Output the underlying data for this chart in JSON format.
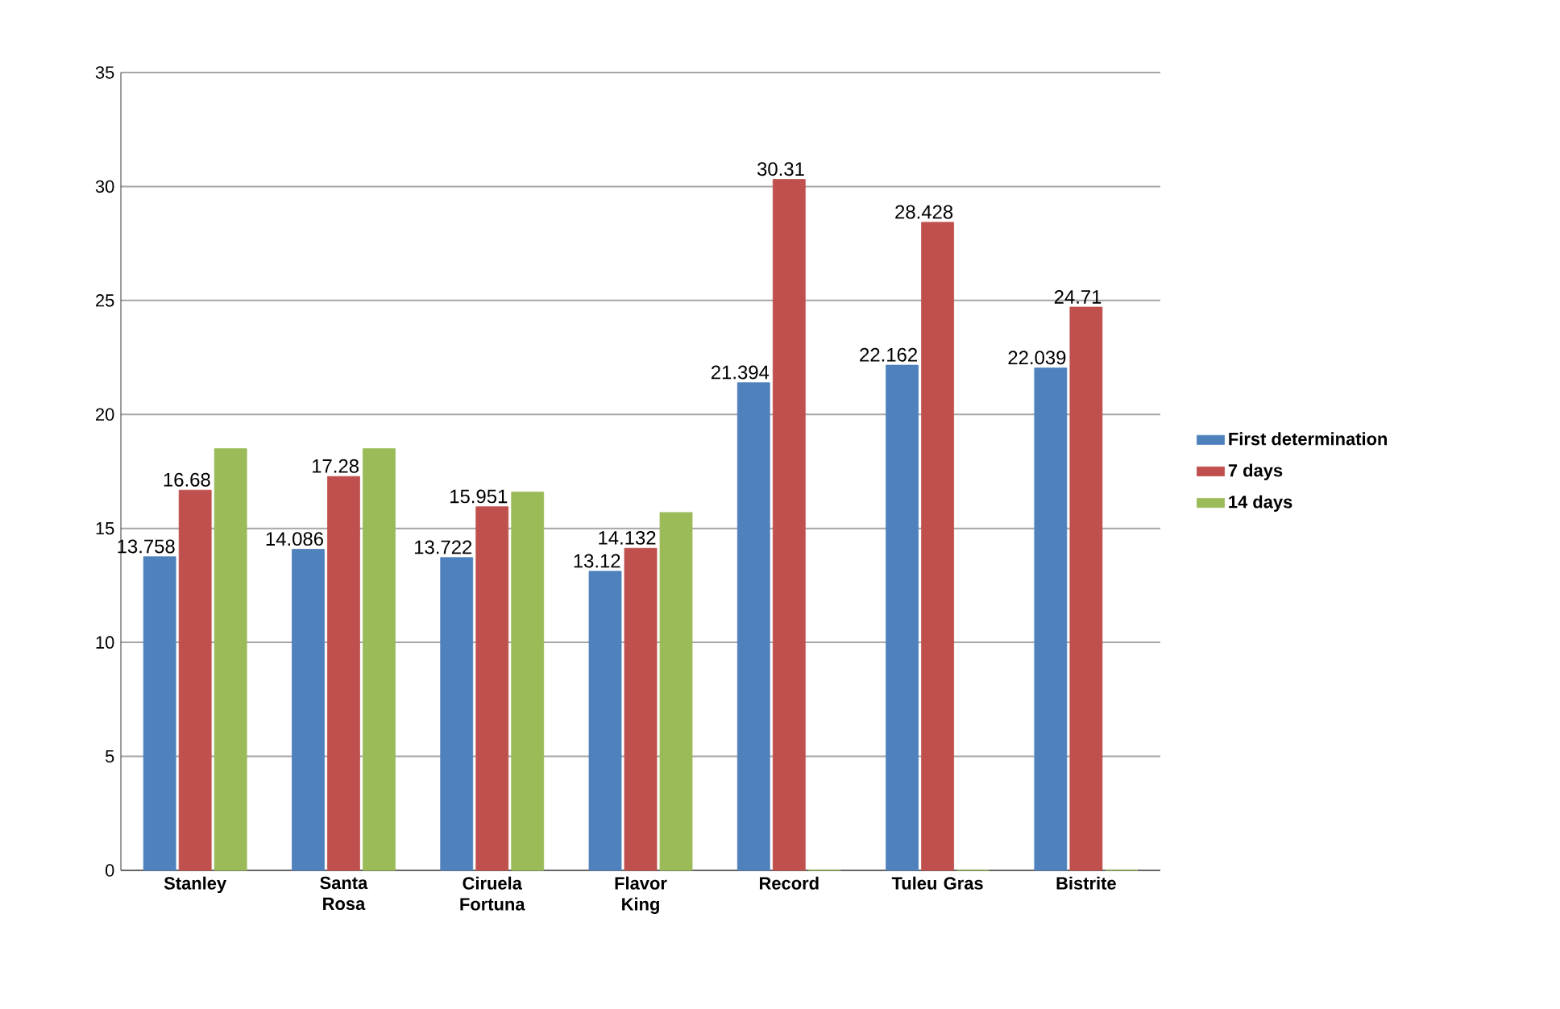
{
  "chart_data": {
    "type": "bar",
    "categories": [
      "Stanley",
      "Santa Rosa",
      "Ciruela Fortuna",
      "Flavor King",
      "Record",
      "Tuleu Gras",
      "Bistrite"
    ],
    "series": [
      {
        "name": "First determination",
        "color": "#4f81bd",
        "values": [
          13.758,
          14.086,
          13.722,
          13.12,
          21.394,
          22.162,
          22.039
        ],
        "value_labels": [
          "13.758",
          "14.086",
          "13.722",
          "13.12",
          "21.394",
          "22.162",
          "22.039"
        ]
      },
      {
        "name": "7 days",
        "color": "#c0504d",
        "values": [
          16.68,
          17.28,
          15.951,
          14.132,
          30.31,
          28.428,
          24.71
        ],
        "value_labels": [
          "16.68",
          "17.28",
          "15.951",
          "14.132",
          "30.31",
          "28.428",
          "24.71"
        ]
      },
      {
        "name": "14 days",
        "color": "#9bbb59",
        "values": [
          18.5,
          18.5,
          16.6,
          15.7,
          0,
          0,
          0
        ]
      }
    ],
    "ylim": [
      0,
      35
    ],
    "yticks": [
      0,
      5,
      10,
      15,
      20,
      25,
      30,
      35
    ],
    "grid": "y",
    "legend": "right"
  }
}
